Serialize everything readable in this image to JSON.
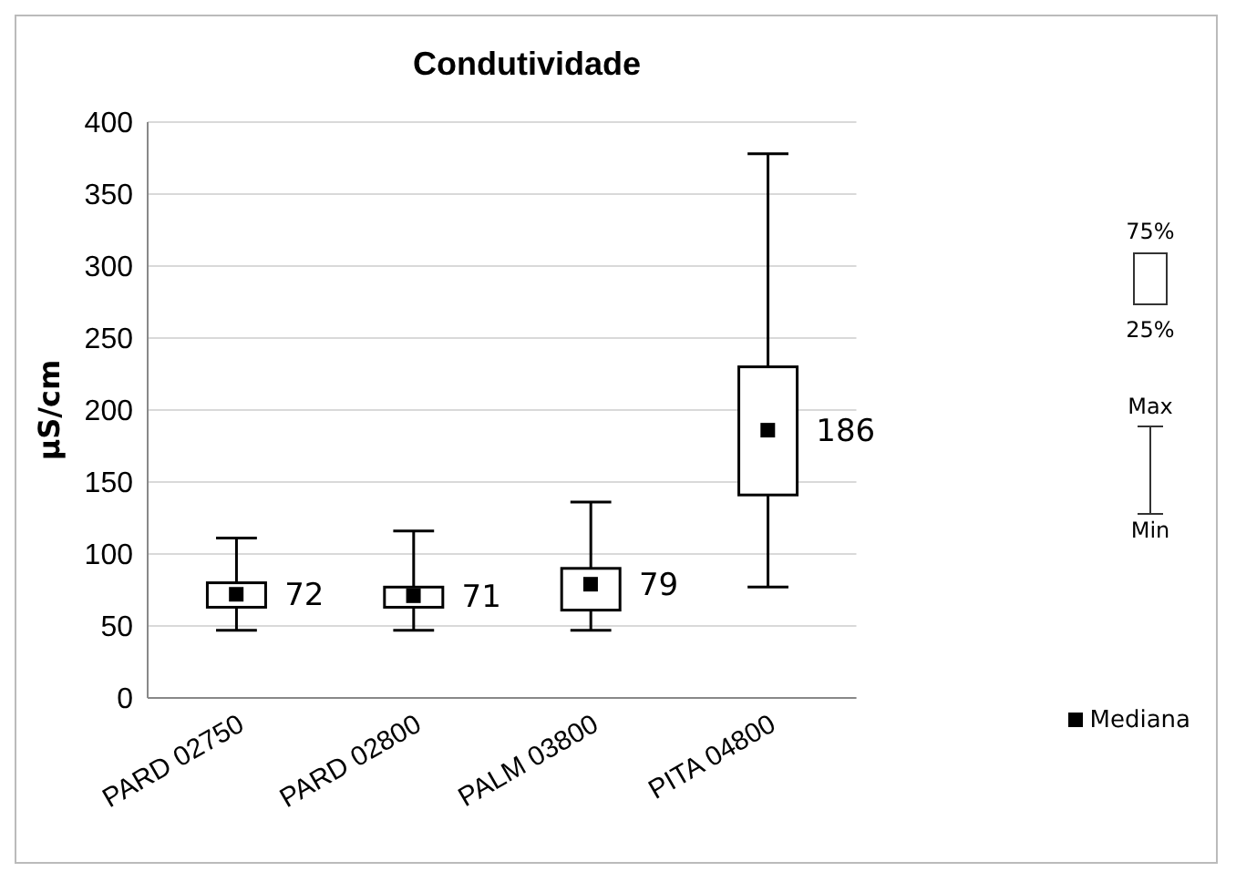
{
  "chart_data": {
    "type": "box",
    "title": "Condutividade",
    "ylabel": "µS/cm",
    "categories": [
      "PARD 02750",
      "PARD 02800",
      "PALM 03800",
      "PITA 04800"
    ],
    "boxes": [
      {
        "low": 47,
        "q1": 63,
        "q3": 80,
        "high": 111
      },
      {
        "low": 47,
        "q1": 63,
        "q3": 77,
        "high": 116
      },
      {
        "low": 47,
        "q1": 61,
        "q3": 90,
        "high": 136
      },
      {
        "low": 77,
        "q1": 141,
        "q3": 230,
        "high": 378
      }
    ],
    "series": [
      {
        "name": "Mediana",
        "type": "scatter",
        "x": [
          "PARD 02750",
          "PARD 02800",
          "PALM 03800",
          "PITA 04800"
        ],
        "values": [
          72,
          71,
          79,
          186
        ],
        "color": "#000000"
      }
    ],
    "marker": "square",
    "data_labels": true,
    "ylim": [
      0,
      400
    ],
    "yticks": [
      0,
      50,
      100,
      150,
      200,
      250,
      300,
      350,
      400
    ],
    "grid": "y",
    "legend": "bottom right",
    "annotations": [
      "75%",
      "25%",
      "Max",
      "Min"
    ]
  }
}
